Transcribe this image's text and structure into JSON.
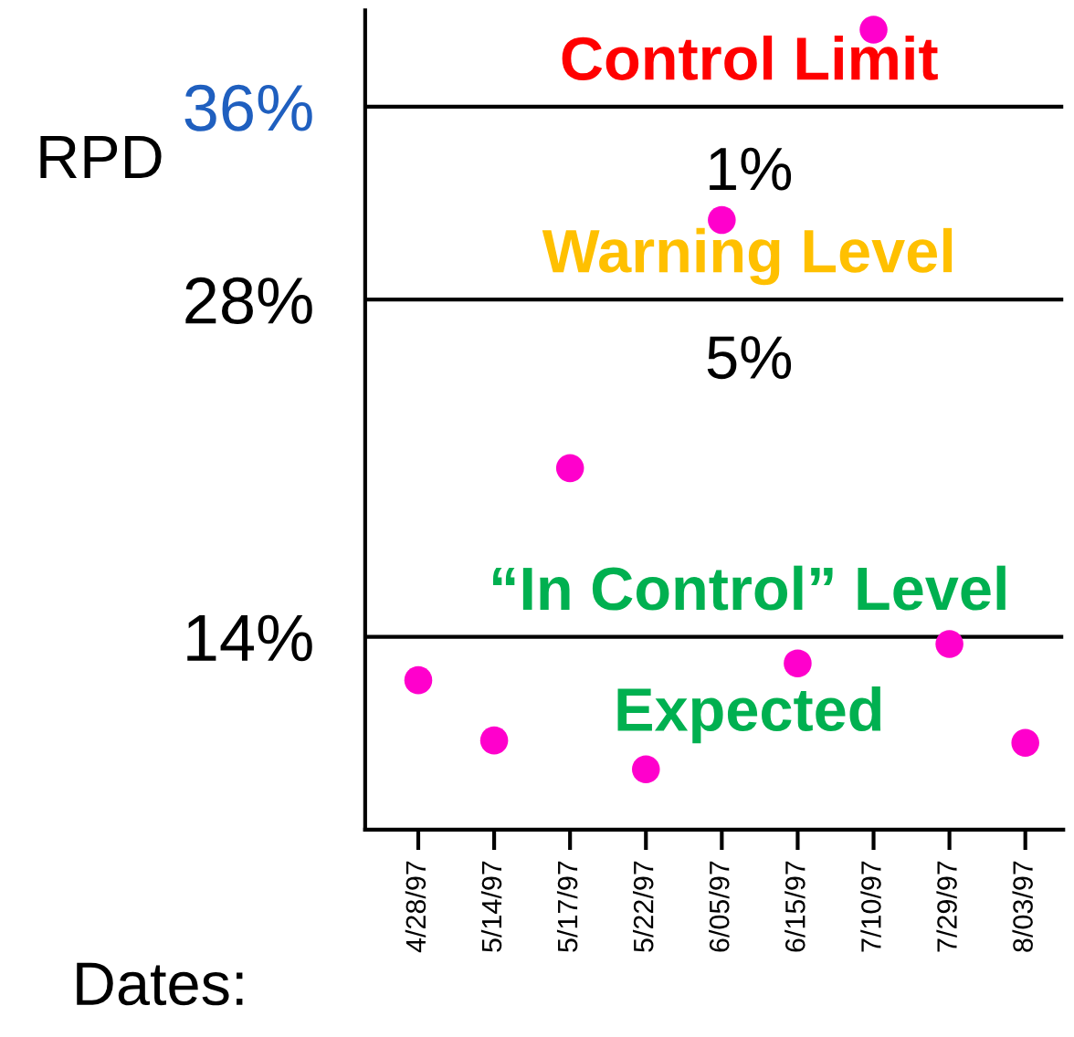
{
  "chart_data": {
    "type": "scatter",
    "xlabel": "Dates:",
    "ylabel": "RPD",
    "categories": [
      "4/28/97",
      "5/14/97",
      "5/17/97",
      "5/22/97",
      "6/05/97",
      "6/15/97",
      "7/10/97",
      "7/29/97",
      "8/03/97"
    ],
    "series": [
      {
        "color": "#ff00cc",
        "values": [
          12.2,
          9.7,
          21.0,
          8.5,
          31.3,
          12.9,
          39.2,
          13.7,
          9.6
        ]
      }
    ],
    "marker": "circle",
    "ylim": [
      6,
      40
    ],
    "yticks": [
      {
        "value": 14,
        "label": "14%"
      },
      {
        "value": 28,
        "label": "28%"
      },
      {
        "value": 36,
        "label": "36%"
      }
    ],
    "ref_lines": [
      {
        "axis": "y",
        "value": 36,
        "label": "Control Limit",
        "color": "#000000"
      },
      {
        "axis": "y",
        "value": 28,
        "label": "Warning Level",
        "color": "#000000"
      },
      {
        "axis": "y",
        "value": 14,
        "label": "“In Control” Level",
        "color": "#000000"
      }
    ],
    "annotations": [
      "1%",
      "5%",
      "Expected"
    ],
    "grid": false,
    "legend": false
  }
}
